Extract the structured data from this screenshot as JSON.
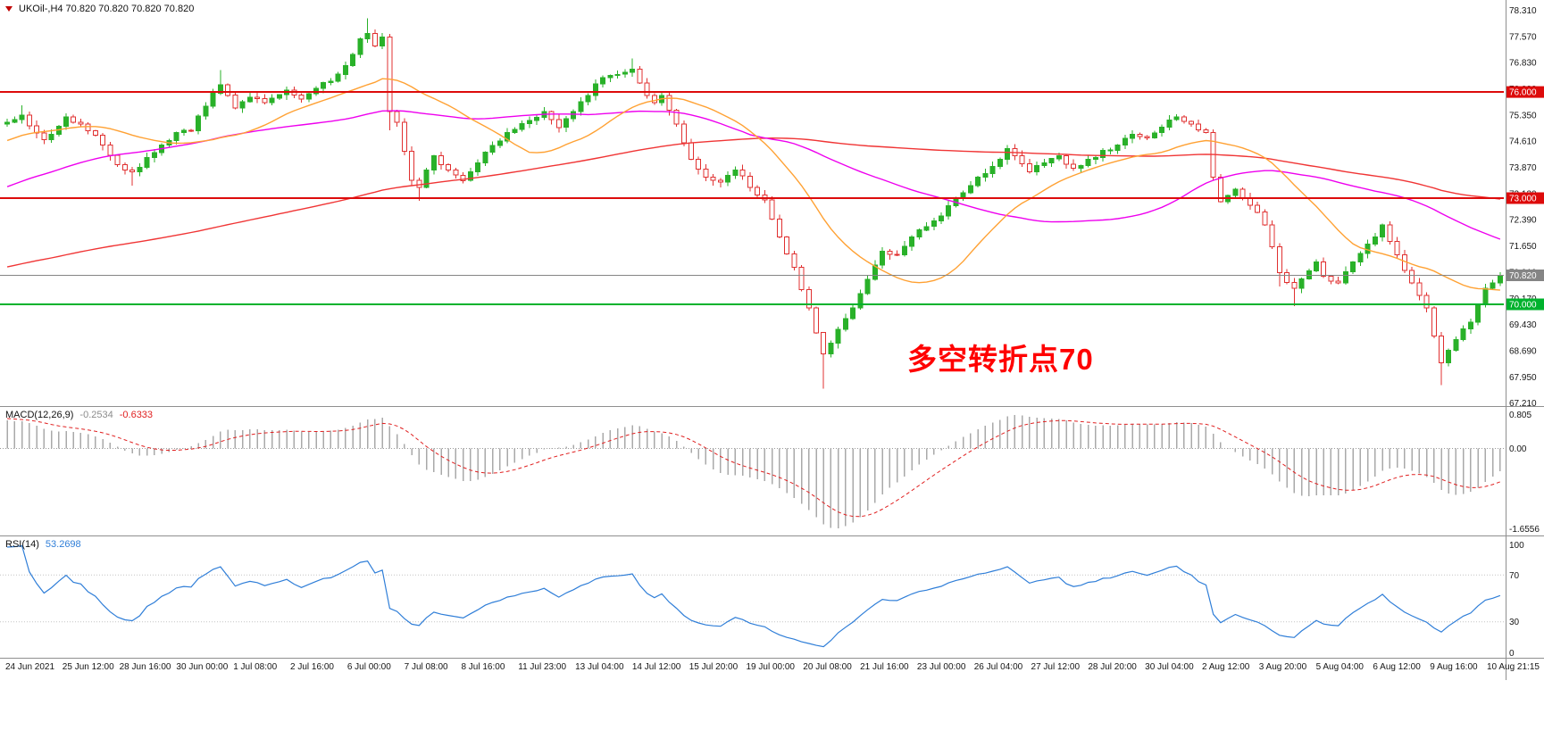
{
  "header": {
    "symbol_line": "UKOil-,H4 70.820 70.820 70.820 70.820"
  },
  "chart_data": {
    "type": "candlestick",
    "symbol": "UKOil-",
    "timeframe": "H4",
    "visible_candles": 204,
    "price_axis": {
      "labels": [
        "78.310",
        "77.570",
        "76.830",
        "76.090",
        "75.350",
        "74.610",
        "73.870",
        "73.130",
        "72.390",
        "71.650",
        "70.910",
        "70.170",
        "69.430",
        "68.690",
        "67.950",
        "67.210"
      ],
      "top_price": 78.6,
      "bottom_price": 67.125
    },
    "time_axis": {
      "labels": [
        "24 Jun 2021",
        "25 Jun 12:00",
        "28 Jun 16:00",
        "30 Jun 00:00",
        "1 Jul 08:00",
        "2 Jul 16:00",
        "6 Jul 00:00",
        "7 Jul 08:00",
        "8 Jul 16:00",
        "11 Jul 23:00",
        "13 Jul 04:00",
        "14 Jul 12:00",
        "15 Jul 20:00",
        "19 Jul 00:00",
        "20 Jul 08:00",
        "21 Jul 16:00",
        "23 Jul 00:00",
        "26 Jul 04:00",
        "27 Jul 12:00",
        "28 Jul 20:00",
        "30 Jul 04:00",
        "2 Aug 12:00",
        "3 Aug 20:00",
        "5 Aug 04:00",
        "6 Aug 12:00",
        "9 Aug 16:00",
        "10 Aug 21:15"
      ]
    },
    "lead_in_anchors": [
      [
        -160,
        68.55
      ],
      [
        -130,
        69.05
      ],
      [
        -100,
        69.75
      ],
      [
        -70,
        70.35
      ],
      [
        -45,
        71.55
      ],
      [
        -28,
        72.95
      ],
      [
        -14,
        74.35
      ],
      [
        -5,
        75.05
      ],
      [
        -1,
        75.1
      ]
    ],
    "price_anchors": [
      [
        0,
        75.15
      ],
      [
        2,
        75.35,
        75.62,
        null
      ],
      [
        5,
        74.65
      ],
      [
        8,
        75.3
      ],
      [
        10,
        75.1
      ],
      [
        11,
        74.9
      ],
      [
        13,
        74.5
      ],
      [
        15,
        73.95
      ],
      [
        17,
        73.75,
        null,
        73.35
      ],
      [
        19,
        74.15
      ],
      [
        21,
        74.5
      ],
      [
        23,
        74.85
      ],
      [
        25,
        74.9
      ],
      [
        27,
        75.6
      ],
      [
        29,
        76.2,
        76.62,
        null
      ],
      [
        31,
        75.55
      ],
      [
        33,
        75.85
      ],
      [
        35,
        75.7
      ],
      [
        38,
        76.05
      ],
      [
        40,
        75.8
      ],
      [
        41,
        75.95
      ],
      [
        44,
        76.3
      ],
      [
        46,
        76.75
      ],
      [
        48,
        77.5
      ],
      [
        49,
        77.65,
        78.08,
        null
      ],
      [
        50,
        77.3
      ],
      [
        51,
        77.55
      ],
      [
        52,
        75.45,
        null,
        74.92
      ],
      [
        53,
        75.15
      ],
      [
        55,
        73.5
      ],
      [
        56,
        73.3,
        null,
        72.92
      ],
      [
        58,
        74.2
      ],
      [
        60,
        73.8
      ],
      [
        62,
        73.5
      ],
      [
        64,
        74.0
      ],
      [
        65,
        74.3
      ],
      [
        68,
        74.85
      ],
      [
        71,
        75.2
      ],
      [
        73,
        75.45
      ],
      [
        75,
        75.0
      ],
      [
        77,
        75.45
      ],
      [
        79,
        75.9
      ],
      [
        81,
        76.4
      ],
      [
        83,
        76.5
      ],
      [
        85,
        76.65,
        76.95,
        null
      ],
      [
        86,
        76.25
      ],
      [
        88,
        75.7
      ],
      [
        89,
        75.9
      ],
      [
        91,
        75.1
      ],
      [
        93,
        74.1
      ],
      [
        95,
        73.6
      ],
      [
        97,
        73.45
      ],
      [
        99,
        73.8
      ],
      [
        101,
        73.3
      ],
      [
        103,
        72.95
      ],
      [
        105,
        71.9
      ],
      [
        107,
        71.05
      ],
      [
        109,
        69.9
      ],
      [
        110,
        69.2
      ],
      [
        111,
        68.6,
        null,
        67.62
      ],
      [
        112,
        68.9
      ],
      [
        113,
        69.3
      ],
      [
        115,
        69.9
      ],
      [
        117,
        70.7
      ],
      [
        119,
        71.5
      ],
      [
        121,
        71.4
      ],
      [
        123,
        71.9
      ],
      [
        125,
        72.2
      ],
      [
        127,
        72.5
      ],
      [
        129,
        73.0
      ],
      [
        131,
        73.35
      ],
      [
        133,
        73.7
      ],
      [
        135,
        74.1
      ],
      [
        136,
        74.4
      ],
      [
        137,
        74.2
      ],
      [
        139,
        73.75
      ],
      [
        141,
        74.0
      ],
      [
        143,
        74.2
      ],
      [
        145,
        73.85
      ],
      [
        147,
        74.1
      ],
      [
        149,
        74.35
      ],
      [
        151,
        74.5
      ],
      [
        153,
        74.8
      ],
      [
        155,
        74.7
      ],
      [
        157,
        75.0
      ],
      [
        159,
        75.3
      ],
      [
        161,
        75.1
      ],
      [
        163,
        74.85
      ],
      [
        164,
        73.6
      ],
      [
        165,
        72.9
      ],
      [
        167,
        73.25
      ],
      [
        169,
        72.8
      ],
      [
        171,
        72.25
      ],
      [
        173,
        70.9,
        null,
        70.5
      ],
      [
        175,
        70.45,
        null,
        69.95
      ],
      [
        177,
        70.95
      ],
      [
        178,
        71.2
      ],
      [
        179,
        70.8
      ],
      [
        181,
        70.6
      ],
      [
        183,
        71.2
      ],
      [
        185,
        71.7
      ],
      [
        187,
        72.25
      ],
      [
        189,
        71.4
      ],
      [
        191,
        70.6
      ],
      [
        193,
        69.9
      ],
      [
        194,
        69.1
      ],
      [
        195,
        68.35,
        null,
        67.72
      ],
      [
        196,
        68.7
      ],
      [
        197,
        69.0
      ],
      [
        199,
        69.5
      ],
      [
        200,
        70.0
      ],
      [
        201,
        70.45
      ],
      [
        202,
        70.6
      ],
      [
        203,
        70.82
      ]
    ],
    "levels": [
      {
        "value": 76.0,
        "badge": "76.000",
        "color": "#dd0b0b"
      },
      {
        "value": 73.0,
        "badge": "73.000",
        "color": "#dd0b0b"
      },
      {
        "value": 70.0,
        "badge": "70.000",
        "color": "#00b22d"
      }
    ],
    "current_price": {
      "value": 70.82,
      "badge": "70.820"
    },
    "moving_averages": [
      {
        "period": 144,
        "color": "#f03535",
        "width": 1.4
      },
      {
        "period": 50,
        "color": "#ee00ee",
        "width": 1.4
      },
      {
        "period": 20,
        "color": "#ffa133",
        "width": 1.4
      }
    ],
    "macd": {
      "label": "MACD(12,26,9)",
      "fast": 12,
      "slow": 26,
      "signal": 9,
      "value_main": "-0.2534",
      "value_signal": "-0.6333",
      "axis_labels": [
        "0.805",
        "0.00",
        "-1.6556"
      ]
    },
    "rsi": {
      "label": "RSI(14)",
      "period": 14,
      "value": "53.2698",
      "levels": [
        70,
        30
      ],
      "axis_labels": [
        "100",
        "70",
        "30",
        "0"
      ]
    },
    "annotation": {
      "text": "多空转折点70",
      "color": "#ff0000"
    },
    "colors": {
      "background": "#ffffff",
      "axis_text": "#151515",
      "separator": "#8f8f8f",
      "candle_up": "#29b129",
      "candle_down": "#e03030",
      "current_price": "#858585",
      "macd_hist": "#a9a9a9",
      "macd_signal": "#e02020",
      "rsi_line": "#2f7ed8",
      "grid_dotted": "#c4c4c4"
    }
  }
}
